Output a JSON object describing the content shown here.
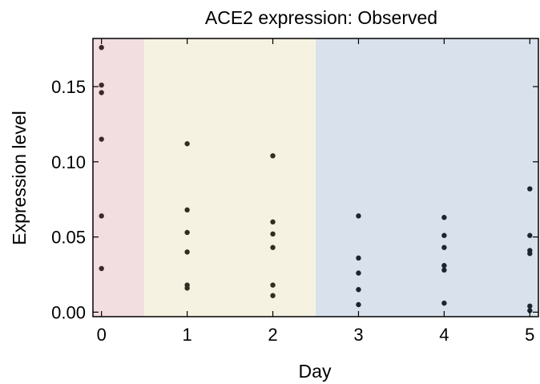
{
  "chart_data": {
    "type": "scatter",
    "title": "ACE2 expression: Observed",
    "xlabel": "Day",
    "ylabel": "Expression level",
    "xlim": [
      -0.1,
      5.1
    ],
    "ylim": [
      -0.003,
      0.182
    ],
    "x_ticks": [
      0,
      1,
      2,
      3,
      4,
      5
    ],
    "x_tick_labels": [
      "0",
      "1",
      "2",
      "3",
      "4",
      "5"
    ],
    "y_ticks": [
      0.0,
      0.05,
      0.1,
      0.15
    ],
    "y_tick_labels": [
      "0.00",
      "0.05",
      "0.10",
      "0.15"
    ],
    "grid": false,
    "background_bands": [
      {
        "x_start": -0.1,
        "x_end": 0.5,
        "color": "#f2dde0"
      },
      {
        "x_start": 0.5,
        "x_end": 2.5,
        "color": "#f6f2e1"
      },
      {
        "x_start": 2.5,
        "x_end": 5.1,
        "color": "#d9e2ec"
      }
    ],
    "series": [
      {
        "color": "#3a2a26",
        "points": [
          {
            "x": 0,
            "y": 0.176
          },
          {
            "x": 0,
            "y": 0.151
          },
          {
            "x": 0,
            "y": 0.146
          },
          {
            "x": 0,
            "y": 0.115
          },
          {
            "x": 0,
            "y": 0.064
          },
          {
            "x": 0,
            "y": 0.029
          }
        ]
      },
      {
        "color": "#2e2e22",
        "points": [
          {
            "x": 1,
            "y": 0.112
          },
          {
            "x": 1,
            "y": 0.068
          },
          {
            "x": 1,
            "y": 0.053
          },
          {
            "x": 1,
            "y": 0.04
          },
          {
            "x": 1,
            "y": 0.018
          },
          {
            "x": 1,
            "y": 0.016
          },
          {
            "x": 2,
            "y": 0.104
          },
          {
            "x": 2,
            "y": 0.06
          },
          {
            "x": 2,
            "y": 0.052
          },
          {
            "x": 2,
            "y": 0.043
          },
          {
            "x": 2,
            "y": 0.018
          },
          {
            "x": 2,
            "y": 0.011
          }
        ]
      },
      {
        "color": "#1b2430",
        "points": [
          {
            "x": 3,
            "y": 0.064
          },
          {
            "x": 3,
            "y": 0.036
          },
          {
            "x": 3,
            "y": 0.026
          },
          {
            "x": 3,
            "y": 0.015
          },
          {
            "x": 3,
            "y": 0.005
          },
          {
            "x": 4,
            "y": 0.063
          },
          {
            "x": 4,
            "y": 0.051
          },
          {
            "x": 4,
            "y": 0.043
          },
          {
            "x": 4,
            "y": 0.031
          },
          {
            "x": 4,
            "y": 0.028
          },
          {
            "x": 4,
            "y": 0.006
          },
          {
            "x": 5,
            "y": 0.082
          },
          {
            "x": 5,
            "y": 0.051
          },
          {
            "x": 5,
            "y": 0.041
          },
          {
            "x": 5,
            "y": 0.039
          },
          {
            "x": 5,
            "y": 0.004
          },
          {
            "x": 5,
            "y": 0.001
          }
        ]
      }
    ]
  }
}
